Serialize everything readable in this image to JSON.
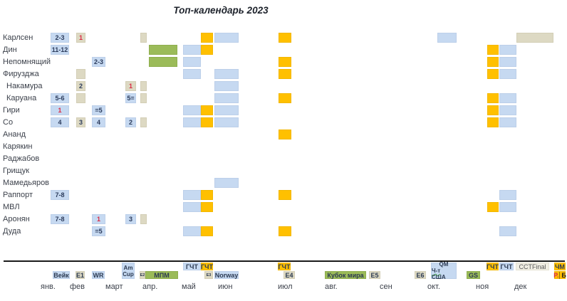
{
  "title": "Топ-календарь 2023",
  "colors": {
    "cell_blue": "#c6d9f1",
    "cell_tan": "#ddd9c3",
    "cell_green": "#9bbb59",
    "cell_orange": "#ffc000",
    "cell_cream": "#f0eee3",
    "result_red": "#d92b44",
    "text_dark": "#2c3c5c"
  },
  "chart_data": {
    "type": "table",
    "title": "Топ-календарь 2023",
    "months": [
      "янв.",
      "фев",
      "март",
      "апр.",
      "май",
      "июн",
      "июл",
      "авг.",
      "сен",
      "окт.",
      "ноя",
      "дек"
    ],
    "columns": [
      {
        "id": "wijk",
        "label": "Вейк",
        "month": "янв",
        "style": "blue"
      },
      {
        "id": "e1",
        "label": "E1",
        "month": "фев",
        "style": "tan"
      },
      {
        "id": "wr",
        "label": "WR",
        "month": "март",
        "style": "blue"
      },
      {
        "id": "amcup",
        "label": "Am",
        "label2": "Cup",
        "month": "апр",
        "style": "blue"
      },
      {
        "id": "e2",
        "label": "E2",
        "month": "апр",
        "style": "tan",
        "tiny": true
      },
      {
        "id": "mpm",
        "label": "МПМ",
        "month": "апр-май",
        "style": "green"
      },
      {
        "id": "gct_may",
        "label": "ГЧТ",
        "month": "май",
        "style": "blue",
        "row": "top"
      },
      {
        "id": "gct_jun",
        "label": "ГЧТ",
        "month": "июн",
        "style": "orange",
        "row": "top"
      },
      {
        "id": "e3",
        "label": "E3",
        "month": "июн",
        "style": "tan",
        "tiny": true
      },
      {
        "id": "norway",
        "label": "Norway",
        "month": "июн",
        "style": "blue"
      },
      {
        "id": "gct_jul",
        "label": "ГЧТ",
        "month": "июл",
        "style": "orange",
        "row": "top"
      },
      {
        "id": "e4",
        "label": "E4",
        "month": "июл",
        "style": "tan"
      },
      {
        "id": "worldcup",
        "label": "Кубок мира",
        "month": "авг-сен",
        "style": "green"
      },
      {
        "id": "e5",
        "label": "E5",
        "month": "сен",
        "style": "tan"
      },
      {
        "id": "e6",
        "label": "E6",
        "month": "окт",
        "style": "tan"
      },
      {
        "id": "qm",
        "label": "QM",
        "label2": "Ч-т США",
        "month": "окт",
        "style": "blue",
        "wavy_first": true
      },
      {
        "id": "gs",
        "label": "GS",
        "month": "ноя",
        "style": "green"
      },
      {
        "id": "gct_nov",
        "label": "ГЧТ",
        "month": "ноя",
        "style": "orange",
        "row": "top"
      },
      {
        "id": "gct_dec",
        "label": "ГЧТ",
        "month": "дек",
        "style": "blue",
        "row": "top"
      },
      {
        "id": "cct",
        "label": "CCTFinal",
        "month": "дек",
        "style": "cream",
        "row": "top"
      },
      {
        "id": "chm",
        "label": "ЧМ",
        "label2": "Р.|Б",
        "month": "дек",
        "style": "orange",
        "label2_red": true
      }
    ],
    "players": [
      {
        "name": "Карлсен",
        "indent": false,
        "cells": [
          {
            "col": "wijk",
            "result": "2-3",
            "style": "blue"
          },
          {
            "col": "e1",
            "result": "1",
            "style": "tan",
            "red": true
          },
          {
            "col": "e2",
            "result": "",
            "style": "tan"
          },
          {
            "col": "gct_jun",
            "result": "",
            "style": "orange"
          },
          {
            "col": "norway",
            "result": "",
            "style": "blue"
          },
          {
            "col": "gct_jul",
            "result": "",
            "style": "orange"
          },
          {
            "col": "qm",
            "result": "",
            "style": "blue"
          },
          {
            "col": "cct",
            "result": "",
            "style": "tan"
          }
        ]
      },
      {
        "name": "Дин",
        "indent": false,
        "cells": [
          {
            "col": "wijk",
            "result": "11-12",
            "style": "blue"
          },
          {
            "col": "mpm",
            "result": "",
            "style": "green"
          },
          {
            "col": "gct_may",
            "result": "",
            "style": "blue"
          },
          {
            "col": "gct_jun",
            "result": "",
            "style": "orange"
          },
          {
            "col": "gct_nov",
            "result": "",
            "style": "orange"
          },
          {
            "col": "gct_dec",
            "result": "",
            "style": "blue"
          }
        ]
      },
      {
        "name": "Непомнящий",
        "indent": false,
        "cells": [
          {
            "col": "wr",
            "result": "2-3",
            "style": "blue"
          },
          {
            "col": "mpm",
            "result": "",
            "style": "green"
          },
          {
            "col": "gct_may",
            "result": "",
            "style": "blue"
          },
          {
            "col": "gct_jul",
            "result": "",
            "style": "orange"
          },
          {
            "col": "gct_nov",
            "result": "",
            "style": "orange"
          },
          {
            "col": "gct_dec",
            "result": "",
            "style": "blue"
          }
        ]
      },
      {
        "name": "Фирузджа",
        "indent": false,
        "cells": [
          {
            "col": "e1",
            "result": "",
            "style": "tan"
          },
          {
            "col": "gct_may",
            "result": "",
            "style": "blue"
          },
          {
            "col": "norway",
            "result": "",
            "style": "blue"
          },
          {
            "col": "gct_jul",
            "result": "",
            "style": "orange"
          },
          {
            "col": "gct_nov",
            "result": "",
            "style": "orange"
          },
          {
            "col": "gct_dec",
            "result": "",
            "style": "blue"
          }
        ]
      },
      {
        "name": "Накамура",
        "indent": true,
        "cells": [
          {
            "col": "e1",
            "result": "2",
            "style": "tan"
          },
          {
            "col": "amcup",
            "result": "1",
            "style": "tan",
            "red": true
          },
          {
            "col": "e2",
            "result": "",
            "style": "tan"
          },
          {
            "col": "norway",
            "result": "",
            "style": "blue"
          }
        ]
      },
      {
        "name": "Каруана",
        "indent": true,
        "cells": [
          {
            "col": "wijk",
            "result": "5-6",
            "style": "blue"
          },
          {
            "col": "e1",
            "result": "",
            "style": "tan"
          },
          {
            "col": "amcup",
            "result": "5=",
            "style": "blue"
          },
          {
            "col": "e2",
            "result": "",
            "style": "tan"
          },
          {
            "col": "norway",
            "result": "",
            "style": "blue"
          },
          {
            "col": "gct_jul",
            "result": "",
            "style": "orange"
          },
          {
            "col": "gct_nov",
            "result": "",
            "style": "orange"
          },
          {
            "col": "gct_dec",
            "result": "",
            "style": "blue"
          }
        ]
      },
      {
        "name": "Гири",
        "indent": false,
        "cells": [
          {
            "col": "wijk",
            "result": "1",
            "style": "blue",
            "red": true
          },
          {
            "col": "wr",
            "result": "=5",
            "style": "blue"
          },
          {
            "col": "gct_may",
            "result": "",
            "style": "blue"
          },
          {
            "col": "gct_jun",
            "result": "",
            "style": "orange"
          },
          {
            "col": "norway",
            "result": "",
            "style": "blue"
          },
          {
            "col": "gct_nov",
            "result": "",
            "style": "orange"
          },
          {
            "col": "gct_dec",
            "result": "",
            "style": "blue"
          }
        ]
      },
      {
        "name": "Со",
        "indent": false,
        "cells": [
          {
            "col": "wijk",
            "result": "4",
            "style": "blue"
          },
          {
            "col": "e1",
            "result": "3",
            "style": "tan"
          },
          {
            "col": "wr",
            "result": "4",
            "style": "blue"
          },
          {
            "col": "amcup",
            "result": "2",
            "style": "blue"
          },
          {
            "col": "e2",
            "result": "",
            "style": "tan"
          },
          {
            "col": "gct_may",
            "result": "",
            "style": "blue"
          },
          {
            "col": "gct_jun",
            "result": "",
            "style": "orange"
          },
          {
            "col": "norway",
            "result": "",
            "style": "blue"
          },
          {
            "col": "gct_nov",
            "result": "",
            "style": "orange"
          },
          {
            "col": "gct_dec",
            "result": "",
            "style": "blue"
          }
        ]
      },
      {
        "name": "Ананд",
        "indent": false,
        "cells": [
          {
            "col": "gct_jul",
            "result": "",
            "style": "orange"
          }
        ]
      },
      {
        "name": "Карякин",
        "indent": false,
        "cells": []
      },
      {
        "name": "Раджабов",
        "indent": false,
        "cells": []
      },
      {
        "name": "Грищук",
        "indent": false,
        "cells": []
      },
      {
        "name": "Мамедьяров",
        "indent": false,
        "cells": [
          {
            "col": "norway",
            "result": "",
            "style": "blue"
          }
        ]
      },
      {
        "name": "Раппорт",
        "indent": false,
        "cells": [
          {
            "col": "wijk",
            "result": "7-8",
            "style": "blue"
          },
          {
            "col": "gct_may",
            "result": "",
            "style": "blue"
          },
          {
            "col": "gct_jun",
            "result": "",
            "style": "orange"
          },
          {
            "col": "gct_jul",
            "result": "",
            "style": "orange"
          },
          {
            "col": "gct_dec",
            "result": "",
            "style": "blue"
          }
        ]
      },
      {
        "name": "МВЛ",
        "indent": false,
        "cells": [
          {
            "col": "gct_may",
            "result": "",
            "style": "blue"
          },
          {
            "col": "gct_jun",
            "result": "",
            "style": "orange"
          },
          {
            "col": "gct_nov",
            "result": "",
            "style": "orange"
          },
          {
            "col": "gct_dec",
            "result": "",
            "style": "blue"
          }
        ]
      },
      {
        "name": "Аронян",
        "indent": false,
        "cells": [
          {
            "col": "wijk",
            "result": "7-8",
            "style": "blue"
          },
          {
            "col": "wr",
            "result": "1",
            "style": "blue",
            "red": true
          },
          {
            "col": "amcup",
            "result": "3",
            "style": "blue"
          },
          {
            "col": "e2",
            "result": "",
            "style": "tan"
          }
        ]
      },
      {
        "name": "Дуда",
        "indent": false,
        "cells": [
          {
            "col": "wr",
            "result": "=5",
            "style": "blue"
          },
          {
            "col": "gct_may",
            "result": "",
            "style": "blue"
          },
          {
            "col": "gct_jun",
            "result": "",
            "style": "orange"
          },
          {
            "col": "gct_jul",
            "result": "",
            "style": "orange"
          },
          {
            "col": "gct_dec",
            "result": "",
            "style": "blue"
          }
        ]
      }
    ]
  }
}
